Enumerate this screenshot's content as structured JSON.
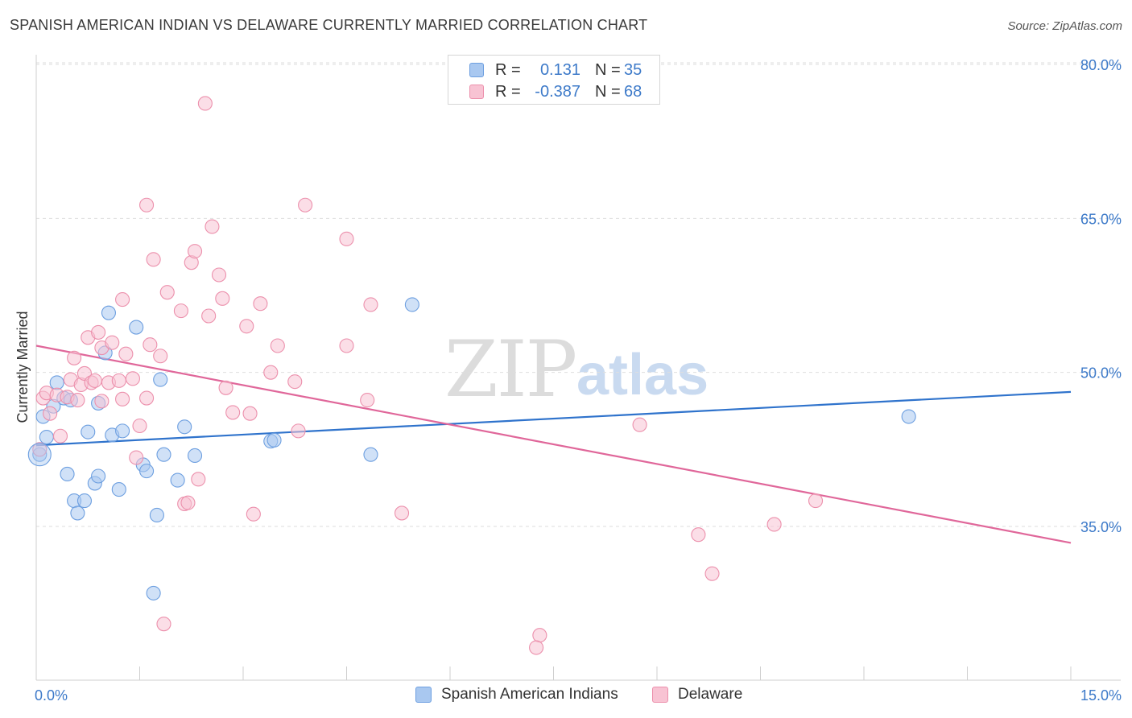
{
  "header": {
    "title": "SPANISH AMERICAN INDIAN VS DELAWARE CURRENTLY MARRIED CORRELATION CHART",
    "source": "Source: ZipAtlas.com"
  },
  "legend": {
    "rows": [
      {
        "r_label": "R =",
        "r_value": "0.131",
        "n_label": "N =",
        "n_value": "35",
        "color": "#a9c8f0",
        "border": "#6d9fe0"
      },
      {
        "r_label": "R =",
        "r_value": "-0.387",
        "n_label": "N =",
        "n_value": "68",
        "color": "#f8c3d3",
        "border": "#ec90ac"
      }
    ]
  },
  "watermark": {
    "zip": "ZIP",
    "atlas": "atlas"
  },
  "bottom_legend": {
    "items": [
      {
        "label": "Spanish American Indians",
        "color": "#a9c8f0",
        "border": "#6d9fe0"
      },
      {
        "label": "Delaware",
        "color": "#f8c3d3",
        "border": "#ec90ac"
      }
    ]
  },
  "chart_data": {
    "type": "scatter",
    "title": "SPANISH AMERICAN INDIAN VS DELAWARE CURRENTLY MARRIED CORRELATION CHART",
    "xlabel": "",
    "ylabel": "Currently Married",
    "xlim": [
      0,
      15
    ],
    "ylim": [
      20,
      82
    ],
    "x_tick_labels": [
      "0.0%",
      "15.0%"
    ],
    "y_ticks": [
      35,
      50,
      65,
      80
    ],
    "y_tick_labels": [
      "35.0%",
      "50.0%",
      "65.0%",
      "80.0%"
    ],
    "grid": true,
    "legend_placement": "top-center",
    "series": [
      {
        "name": "Spanish American Indians",
        "color": "#6d9fe0",
        "fill": "#a9c8f0",
        "trend": {
          "x": [
            0,
            15
          ],
          "y": [
            42.9,
            48.1
          ],
          "color": "#2f73cc"
        },
        "points": [
          [
            0.05,
            42.0
          ],
          [
            0.1,
            45.7
          ],
          [
            0.15,
            43.7
          ],
          [
            0.25,
            46.7
          ],
          [
            0.3,
            49.0
          ],
          [
            0.4,
            47.5
          ],
          [
            0.45,
            40.1
          ],
          [
            0.5,
            47.3
          ],
          [
            0.55,
            37.5
          ],
          [
            0.6,
            36.3
          ],
          [
            0.7,
            37.5
          ],
          [
            0.75,
            44.2
          ],
          [
            0.85,
            39.2
          ],
          [
            0.9,
            39.9
          ],
          [
            0.9,
            47.0
          ],
          [
            1.0,
            51.9
          ],
          [
            1.05,
            55.8
          ],
          [
            1.1,
            43.9
          ],
          [
            1.2,
            38.6
          ],
          [
            1.25,
            44.3
          ],
          [
            1.45,
            54.4
          ],
          [
            1.55,
            41.0
          ],
          [
            1.6,
            40.4
          ],
          [
            1.75,
            36.1
          ],
          [
            1.8,
            49.3
          ],
          [
            1.85,
            42.0
          ],
          [
            2.05,
            39.5
          ],
          [
            2.15,
            44.7
          ],
          [
            2.3,
            41.9
          ],
          [
            3.4,
            43.3
          ],
          [
            3.45,
            43.4
          ],
          [
            4.85,
            42.0
          ],
          [
            5.45,
            56.6
          ],
          [
            12.65,
            45.7
          ],
          [
            1.7,
            28.5
          ]
        ]
      },
      {
        "name": "Delaware",
        "color": "#ec90ac",
        "fill": "#f8c3d3",
        "trend": {
          "x": [
            0,
            15
          ],
          "y": [
            52.6,
            33.4
          ],
          "color": "#e0679a"
        },
        "points": [
          [
            0.05,
            42.5
          ],
          [
            0.1,
            47.5
          ],
          [
            0.15,
            48.0
          ],
          [
            0.2,
            46.0
          ],
          [
            0.3,
            47.8
          ],
          [
            0.35,
            43.8
          ],
          [
            0.45,
            47.6
          ],
          [
            0.5,
            49.3
          ],
          [
            0.55,
            51.4
          ],
          [
            0.6,
            47.3
          ],
          [
            0.65,
            48.8
          ],
          [
            0.7,
            49.9
          ],
          [
            0.75,
            53.4
          ],
          [
            0.8,
            49.0
          ],
          [
            0.85,
            49.2
          ],
          [
            0.9,
            53.9
          ],
          [
            0.95,
            47.2
          ],
          [
            0.95,
            52.4
          ],
          [
            1.05,
            49.0
          ],
          [
            1.1,
            52.9
          ],
          [
            1.2,
            49.2
          ],
          [
            1.25,
            57.1
          ],
          [
            1.25,
            47.4
          ],
          [
            1.3,
            51.8
          ],
          [
            1.4,
            49.4
          ],
          [
            1.45,
            41.7
          ],
          [
            1.5,
            44.8
          ],
          [
            1.6,
            47.5
          ],
          [
            1.6,
            66.3
          ],
          [
            1.65,
            52.7
          ],
          [
            1.7,
            61.0
          ],
          [
            1.8,
            51.6
          ],
          [
            1.85,
            25.5
          ],
          [
            1.9,
            57.8
          ],
          [
            2.1,
            56.0
          ],
          [
            2.15,
            37.2
          ],
          [
            2.2,
            37.3
          ],
          [
            2.25,
            60.7
          ],
          [
            2.3,
            61.8
          ],
          [
            2.35,
            39.6
          ],
          [
            2.45,
            76.2
          ],
          [
            2.5,
            55.5
          ],
          [
            2.55,
            64.2
          ],
          [
            2.65,
            59.5
          ],
          [
            2.7,
            57.2
          ],
          [
            2.75,
            48.5
          ],
          [
            2.85,
            46.1
          ],
          [
            3.05,
            54.5
          ],
          [
            3.1,
            46.0
          ],
          [
            3.15,
            36.2
          ],
          [
            3.25,
            56.7
          ],
          [
            3.4,
            50.0
          ],
          [
            3.5,
            52.6
          ],
          [
            3.75,
            49.1
          ],
          [
            3.8,
            44.3
          ],
          [
            3.9,
            66.3
          ],
          [
            4.5,
            63.0
          ],
          [
            4.5,
            52.6
          ],
          [
            4.8,
            47.3
          ],
          [
            4.85,
            56.6
          ],
          [
            5.3,
            36.3
          ],
          [
            7.3,
            24.4
          ],
          [
            7.25,
            23.2
          ],
          [
            8.75,
            44.9
          ],
          [
            9.6,
            34.2
          ],
          [
            9.8,
            30.4
          ],
          [
            10.7,
            35.2
          ],
          [
            11.3,
            37.5
          ]
        ]
      }
    ],
    "extra_points_note": ""
  }
}
